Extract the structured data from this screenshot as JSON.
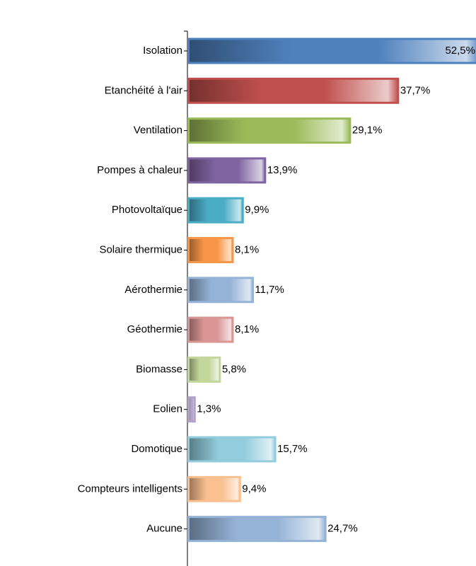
{
  "chart_data": {
    "type": "bar",
    "orientation": "horizontal",
    "categories": [
      "Isolation",
      "Etanchéité à l'air",
      "Ventilation",
      "Pompes à chaleur",
      "Photovoltaïque",
      "Solaire thermique",
      "Aérothermie",
      "Géothermie",
      "Biomasse",
      "Eolien",
      "Domotique",
      "Compteurs intelligents",
      "Aucune"
    ],
    "values": [
      52.5,
      37.7,
      29.1,
      13.9,
      9.9,
      8.1,
      11.7,
      8.1,
      5.8,
      1.3,
      15.7,
      9.4,
      24.7
    ],
    "value_labels": [
      "52,5%",
      "37,7%",
      "29,1%",
      "13,9%",
      "9,9%",
      "8,1%",
      "11,7%",
      "8,1%",
      "5,8%",
      "1,3%",
      "15,7%",
      "9,4%",
      "24,7%"
    ],
    "colors": [
      "#4f81bd",
      "#c0504d",
      "#9bbb59",
      "#8064a2",
      "#4bacc6",
      "#f79646",
      "#95b3d7",
      "#d99694",
      "#c3d69b",
      "#b3a2c7",
      "#93cddd",
      "#fac090",
      "#95b3d7"
    ]
  }
}
